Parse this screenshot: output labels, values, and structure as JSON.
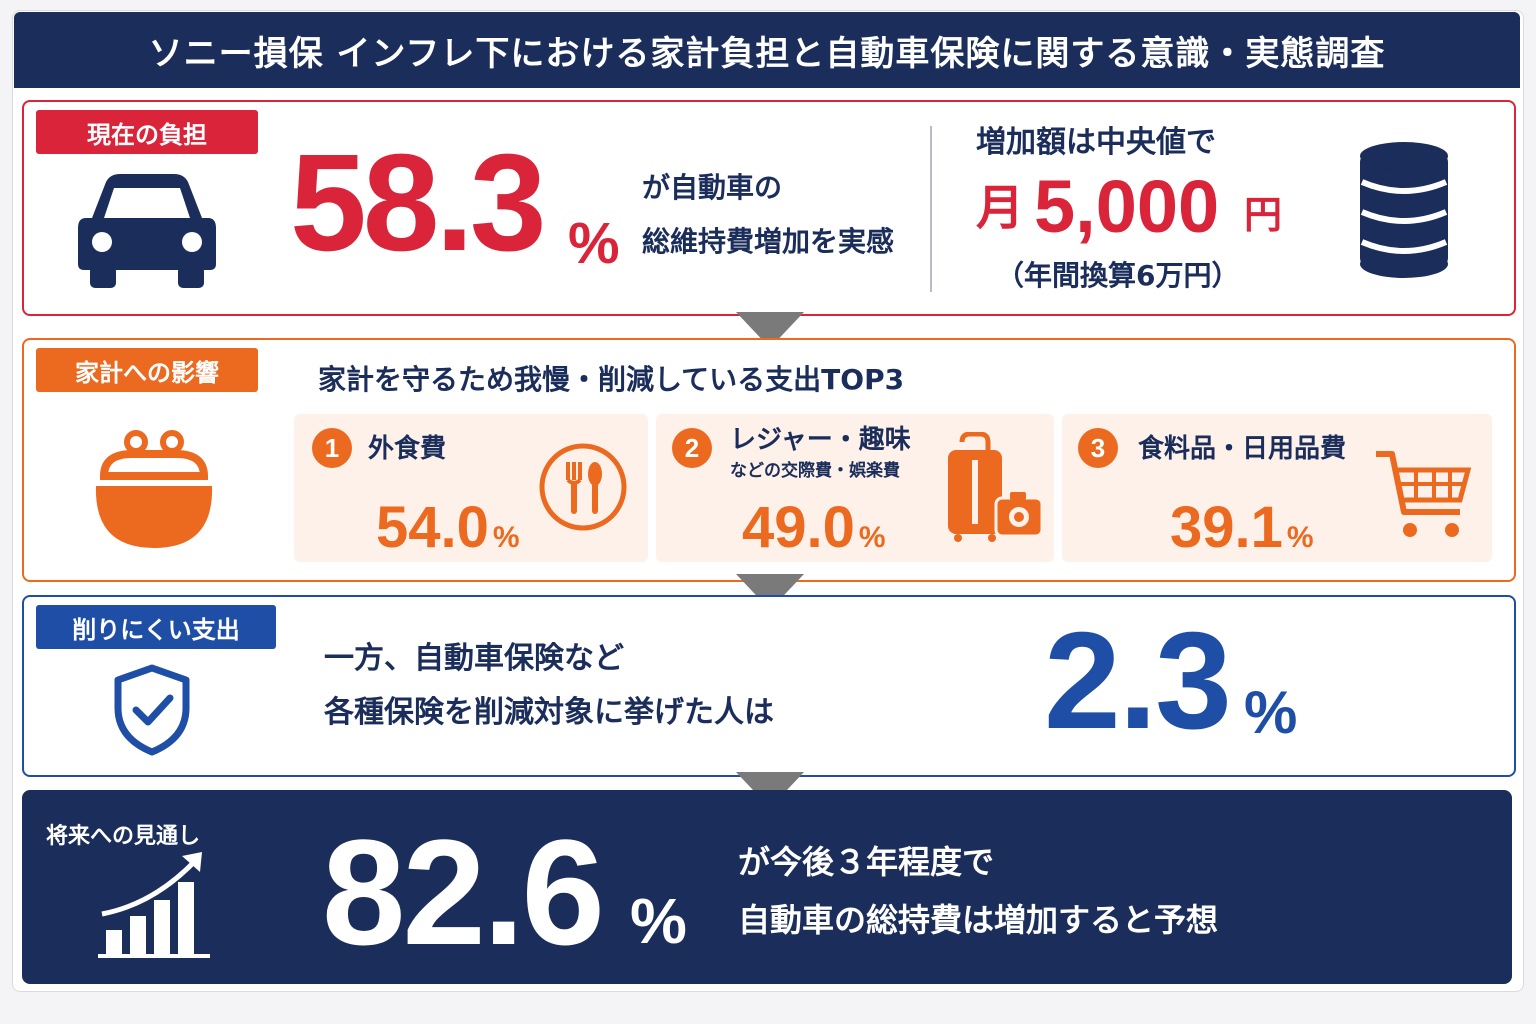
{
  "title": "ソニー損保 インフレ下における家計負担と自動車保険に関する意識・実態調査",
  "section1": {
    "tag": "現在の負担",
    "icon": "car-icon",
    "percent": "58.3",
    "percent_unit": "%",
    "desc_line1": "が自動車の",
    "desc_line2": "総維持費増加を実感",
    "median_label": "増加額は中央値で",
    "median_prefix": "月",
    "median_value": "5,000",
    "median_unit": "円",
    "annual": "（年間換算6万円）",
    "coins_icon": "coin-stack-icon"
  },
  "section2": {
    "tag": "家計への影響",
    "icon": "purse-icon",
    "heading": "家計を守るため我慢・削減している支出TOP3",
    "items": [
      {
        "rank": "1",
        "label": "外食費",
        "sub": "",
        "value": "54.0",
        "unit": "%",
        "icon": "fork-knife-icon"
      },
      {
        "rank": "2",
        "label": "レジャー・趣味",
        "sub": "などの交際費・娯楽費",
        "value": "49.0",
        "unit": "%",
        "icon": "suitcase-camera-icon"
      },
      {
        "rank": "3",
        "label": "食料品・日用品費",
        "sub": "",
        "value": "39.1",
        "unit": "%",
        "icon": "shopping-cart-icon"
      }
    ]
  },
  "section3": {
    "tag": "削りにくい支出",
    "icon": "shield-check-icon",
    "line1": "一方、自動車保険など",
    "line2": "各種保険を削減対象に挙げた人は",
    "percent": "2.3",
    "percent_unit": "%"
  },
  "section4": {
    "tag": "将来への見通し",
    "icon": "growth-chart-icon",
    "percent": "82.6",
    "percent_unit": "%",
    "line1": "が今後３年程度で",
    "line2": "自動車の総持費は増加すると予想"
  },
  "colors": {
    "navy": "#1b2d5a",
    "red": "#d9243a",
    "orange": "#ec6a20",
    "blue": "#1f4ea6"
  }
}
